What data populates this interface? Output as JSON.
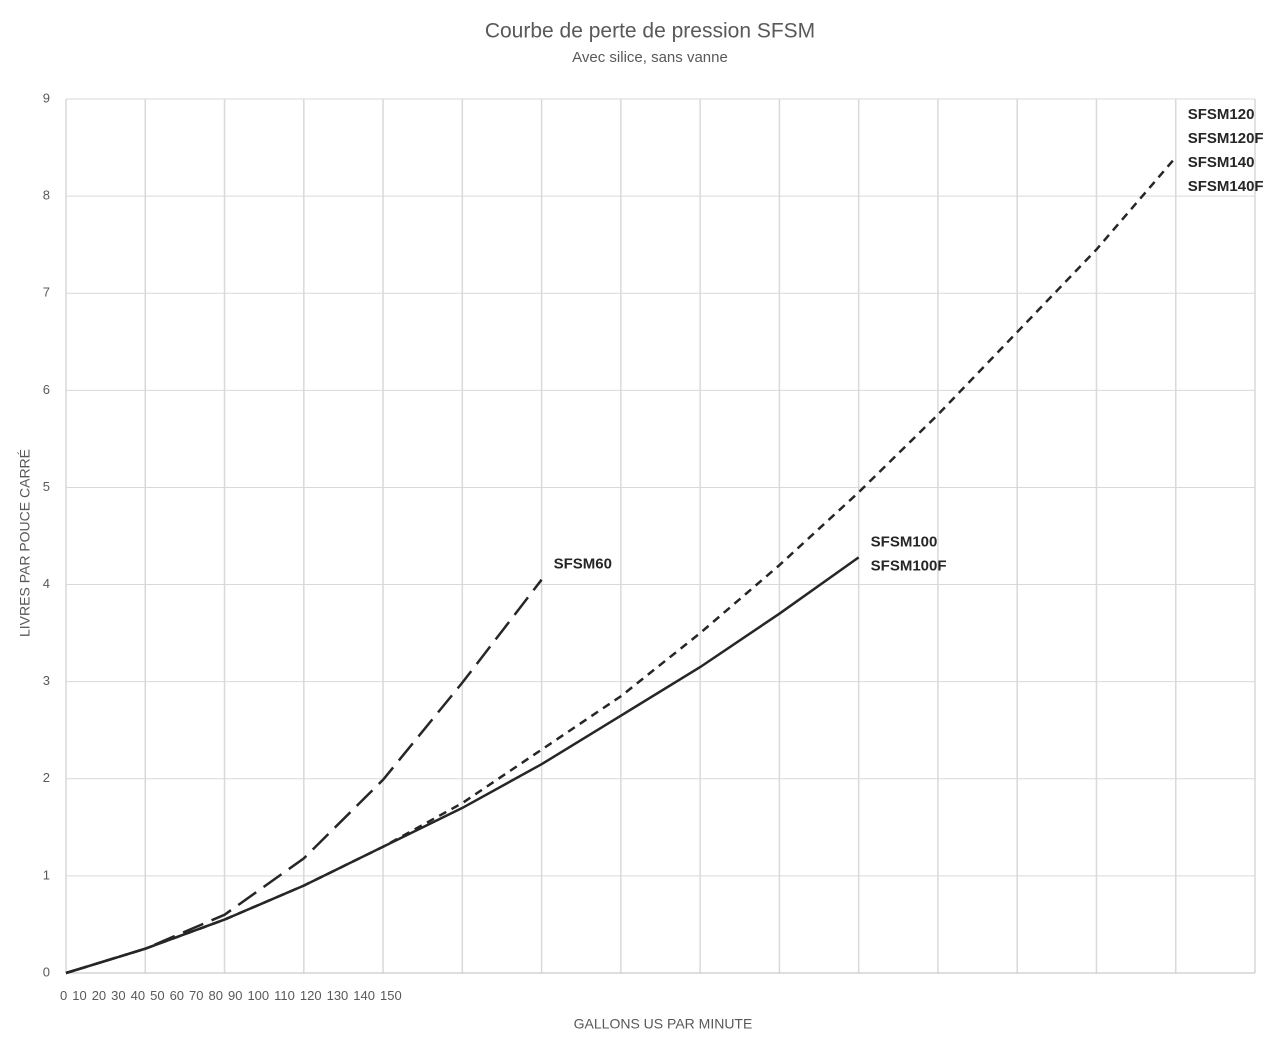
{
  "chart_data": {
    "type": "line",
    "title": "Courbe de perte de pression SFSM",
    "subtitle": "Avec silice, sans vanne",
    "xlabel": "GALLONS US PAR MINUTE",
    "ylabel": "LIVRES PAR POUCE CARRÉ",
    "xlim": [
      0,
      150
    ],
    "ylim": [
      0,
      9
    ],
    "xticks": [
      0,
      10,
      20,
      30,
      40,
      50,
      60,
      70,
      80,
      90,
      100,
      110,
      120,
      130,
      140,
      150
    ],
    "yticks": [
      0,
      1,
      2,
      3,
      4,
      5,
      6,
      7,
      8,
      9
    ],
    "grid": true,
    "series": [
      {
        "labels": [
          "SFSM60"
        ],
        "color": "#262626",
        "dash": "long",
        "x": [
          0,
          10,
          20,
          30,
          40,
          50,
          60
        ],
        "values": [
          0,
          0.25,
          0.6,
          1.18,
          1.99,
          2.99,
          4.05
        ]
      },
      {
        "labels": [
          "SFSM100",
          "SFSM100F"
        ],
        "color": "#262626",
        "dash": "solid",
        "x": [
          0,
          10,
          20,
          30,
          40,
          50,
          60,
          70,
          80,
          90,
          100
        ],
        "values": [
          0,
          0.25,
          0.55,
          0.9,
          1.3,
          1.7,
          2.15,
          2.65,
          3.15,
          3.7,
          4.28
        ]
      },
      {
        "labels": [
          "SFSM120",
          "SFSM120F",
          "SFSM140",
          "SFSM140F"
        ],
        "color": "#262626",
        "dash": "short",
        "x": [
          0,
          10,
          20,
          30,
          40,
          50,
          60,
          70,
          80,
          90,
          100,
          110,
          120,
          130,
          140
        ],
        "values": [
          0,
          0.25,
          0.55,
          0.9,
          1.3,
          1.75,
          2.3,
          2.85,
          3.5,
          4.2,
          4.95,
          5.75,
          6.6,
          7.45,
          8.4
        ]
      }
    ]
  }
}
